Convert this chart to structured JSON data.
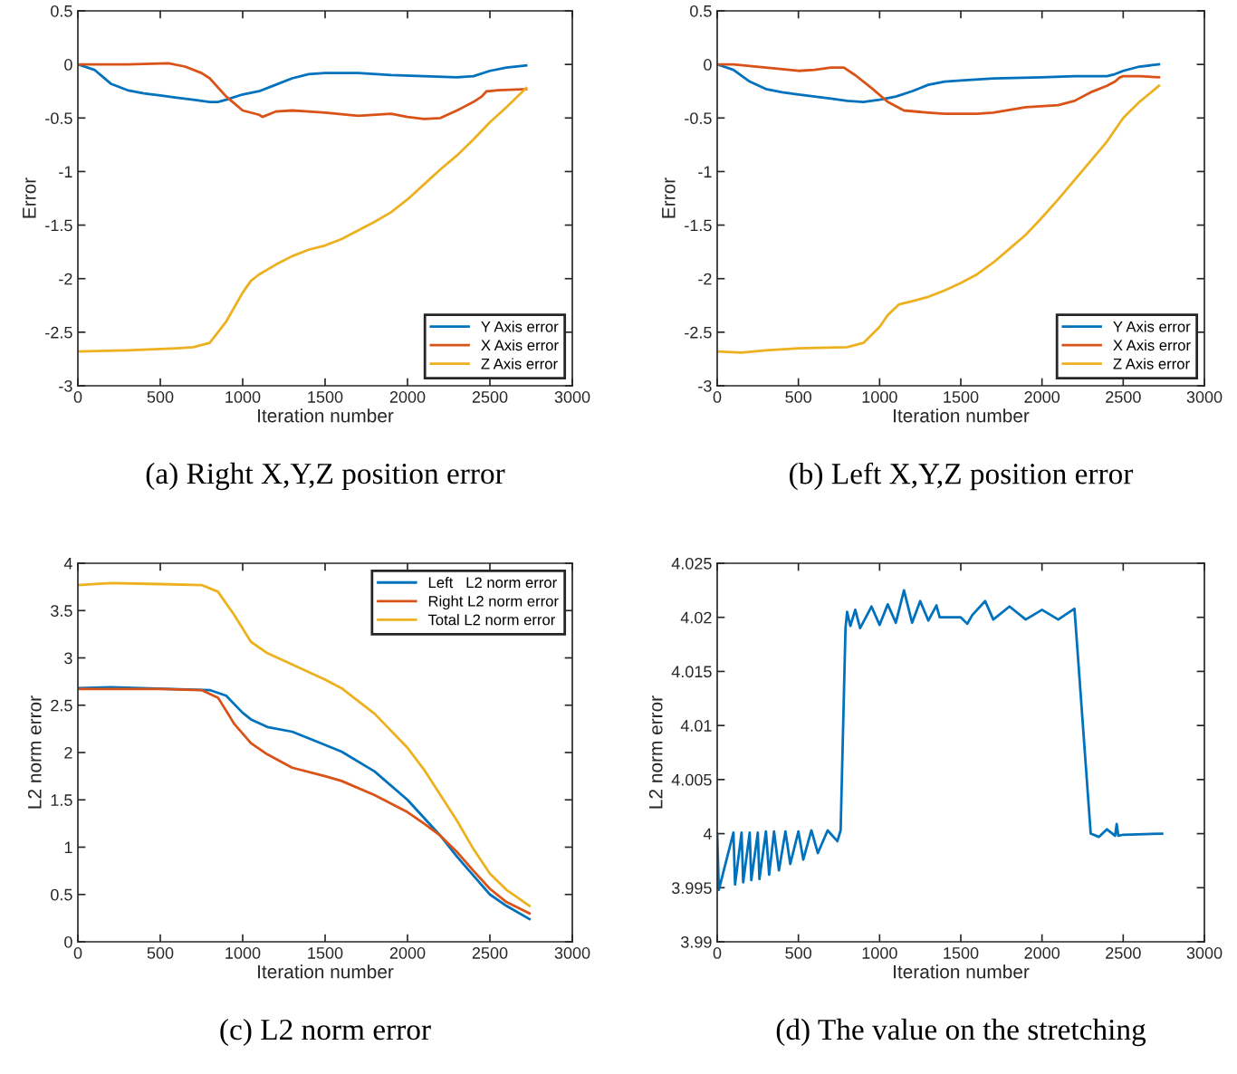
{
  "chart_data": [
    {
      "type": "line",
      "xlabel": "Iteration number",
      "ylabel": "Error",
      "annotations": [
        "(a) Right X,Y,Z position error"
      ],
      "xlim": [
        0,
        3000
      ],
      "ylim": [
        -3,
        0.5
      ],
      "xticks": [
        0,
        500,
        1000,
        1500,
        2000,
        2500,
        3000
      ],
      "yticks": [
        -3,
        -2.5,
        -2,
        -1.5,
        -1,
        -0.5,
        0,
        0.5
      ],
      "legend": "bottom right",
      "series": [
        {
          "name": "Y Axis error",
          "color": "#0072bd",
          "x": [
            0,
            100,
            200,
            300,
            400,
            500,
            600,
            700,
            800,
            850,
            900,
            1000,
            1100,
            1200,
            1300,
            1400,
            1500,
            1700,
            1900,
            2100,
            2300,
            2400,
            2500,
            2600,
            2720
          ],
          "values": [
            0,
            -0.05,
            -0.18,
            -0.24,
            -0.27,
            -0.29,
            -0.31,
            -0.33,
            -0.35,
            -0.35,
            -0.33,
            -0.28,
            -0.25,
            -0.19,
            -0.13,
            -0.09,
            -0.08,
            -0.08,
            -0.1,
            -0.11,
            -0.12,
            -0.11,
            -0.06,
            -0.03,
            -0.01
          ]
        },
        {
          "name": "X Axis error",
          "color": "#d95319",
          "x": [
            0,
            300,
            550,
            650,
            750,
            800,
            900,
            1000,
            1100,
            1120,
            1200,
            1300,
            1400,
            1500,
            1700,
            1900,
            2000,
            2100,
            2200,
            2300,
            2400,
            2450,
            2480,
            2500,
            2550,
            2720
          ],
          "values": [
            0,
            0,
            0.01,
            -0.02,
            -0.08,
            -0.13,
            -0.3,
            -0.43,
            -0.47,
            -0.49,
            -0.44,
            -0.43,
            -0.44,
            -0.45,
            -0.48,
            -0.46,
            -0.49,
            -0.51,
            -0.5,
            -0.43,
            -0.35,
            -0.3,
            -0.25,
            -0.25,
            -0.24,
            -0.23
          ]
        },
        {
          "name": "Z Axis error",
          "color": "#edb120",
          "x": [
            0,
            300,
            600,
            700,
            800,
            900,
            1000,
            1050,
            1100,
            1200,
            1300,
            1400,
            1500,
            1600,
            1700,
            1800,
            1900,
            2000,
            2100,
            2200,
            2300,
            2400,
            2500,
            2600,
            2720
          ],
          "values": [
            -2.68,
            -2.67,
            -2.65,
            -2.64,
            -2.6,
            -2.4,
            -2.13,
            -2.02,
            -1.96,
            -1.87,
            -1.79,
            -1.73,
            -1.69,
            -1.63,
            -1.55,
            -1.47,
            -1.38,
            -1.26,
            -1.12,
            -0.98,
            -0.85,
            -0.7,
            -0.54,
            -0.4,
            -0.22
          ]
        }
      ]
    },
    {
      "type": "line",
      "xlabel": "Iteration number",
      "ylabel": "Error",
      "annotations": [
        "(b) Left X,Y,Z position error"
      ],
      "xlim": [
        0,
        3000
      ],
      "ylim": [
        -3,
        0.5
      ],
      "xticks": [
        0,
        500,
        1000,
        1500,
        2000,
        2500,
        3000
      ],
      "yticks": [
        -3,
        -2.5,
        -2,
        -1.5,
        -1,
        -0.5,
        0,
        0.5
      ],
      "legend": "bottom right",
      "series": [
        {
          "name": "Y Axis error",
          "color": "#0072bd",
          "x": [
            0,
            100,
            200,
            300,
            400,
            500,
            600,
            700,
            800,
            900,
            1000,
            1100,
            1200,
            1300,
            1400,
            1500,
            1700,
            2000,
            2200,
            2400,
            2450,
            2500,
            2600,
            2720
          ],
          "values": [
            0,
            -0.05,
            -0.16,
            -0.23,
            -0.26,
            -0.28,
            -0.3,
            -0.32,
            -0.34,
            -0.35,
            -0.33,
            -0.3,
            -0.25,
            -0.19,
            -0.16,
            -0.15,
            -0.13,
            -0.12,
            -0.11,
            -0.11,
            -0.09,
            -0.06,
            -0.02,
            0.0
          ]
        },
        {
          "name": "X Axis error",
          "color": "#d95319",
          "x": [
            0,
            100,
            300,
            500,
            600,
            700,
            780,
            850,
            950,
            1050,
            1150,
            1300,
            1400,
            1600,
            1700,
            1900,
            2100,
            2200,
            2300,
            2400,
            2450,
            2480,
            2500,
            2600,
            2720
          ],
          "values": [
            0,
            0,
            -0.03,
            -0.06,
            -0.05,
            -0.03,
            -0.03,
            -0.1,
            -0.22,
            -0.35,
            -0.43,
            -0.45,
            -0.46,
            -0.46,
            -0.45,
            -0.4,
            -0.38,
            -0.34,
            -0.26,
            -0.2,
            -0.16,
            -0.12,
            -0.11,
            -0.11,
            -0.12
          ]
        },
        {
          "name": "Z Axis error",
          "color": "#edb120",
          "x": [
            0,
            150,
            300,
            500,
            800,
            900,
            1000,
            1050,
            1120,
            1200,
            1300,
            1400,
            1500,
            1600,
            1700,
            1800,
            1900,
            2000,
            2100,
            2200,
            2300,
            2400,
            2500,
            2600,
            2720
          ],
          "values": [
            -2.68,
            -2.69,
            -2.67,
            -2.65,
            -2.64,
            -2.6,
            -2.45,
            -2.34,
            -2.24,
            -2.21,
            -2.17,
            -2.11,
            -2.04,
            -1.96,
            -1.85,
            -1.72,
            -1.59,
            -1.43,
            -1.26,
            -1.08,
            -0.9,
            -0.72,
            -0.5,
            -0.35,
            -0.2
          ]
        }
      ]
    },
    {
      "type": "line",
      "xlabel": "Iteration number",
      "ylabel": "L2 norm error",
      "annotations": [
        "(c) L2 norm error"
      ],
      "xlim": [
        0,
        3000
      ],
      "ylim": [
        0,
        4
      ],
      "xticks": [
        0,
        500,
        1000,
        1500,
        2000,
        2500,
        3000
      ],
      "yticks": [
        0,
        0.5,
        1,
        1.5,
        2,
        2.5,
        3,
        3.5,
        4
      ],
      "legend": "top right",
      "series": [
        {
          "name": "Left   L2 norm error",
          "color": "#0072bd",
          "x": [
            0,
            200,
            800,
            900,
            1000,
            1050,
            1150,
            1300,
            1400,
            1600,
            1800,
            2000,
            2200,
            2300,
            2400,
            2500,
            2600,
            2740
          ],
          "values": [
            2.68,
            2.69,
            2.66,
            2.6,
            2.42,
            2.35,
            2.27,
            2.22,
            2.15,
            2.01,
            1.8,
            1.5,
            1.12,
            0.9,
            0.7,
            0.5,
            0.38,
            0.24
          ]
        },
        {
          "name": "Right L2 norm error",
          "color": "#d95319",
          "x": [
            0,
            500,
            750,
            850,
            950,
            1050,
            1150,
            1300,
            1500,
            1600,
            1800,
            2000,
            2100,
            2200,
            2300,
            2400,
            2500,
            2600,
            2740
          ],
          "values": [
            2.67,
            2.67,
            2.66,
            2.58,
            2.3,
            2.1,
            1.98,
            1.84,
            1.75,
            1.7,
            1.55,
            1.37,
            1.25,
            1.12,
            0.95,
            0.75,
            0.56,
            0.42,
            0.3
          ]
        },
        {
          "name": "Total L2 norm error",
          "color": "#edb120",
          "x": [
            0,
            200,
            500,
            750,
            850,
            950,
            1050,
            1150,
            1300,
            1500,
            1600,
            1800,
            2000,
            2100,
            2200,
            2300,
            2400,
            2500,
            2600,
            2740
          ],
          "values": [
            3.77,
            3.79,
            3.78,
            3.77,
            3.7,
            3.45,
            3.17,
            3.05,
            2.93,
            2.77,
            2.68,
            2.41,
            2.05,
            1.82,
            1.55,
            1.28,
            0.98,
            0.72,
            0.55,
            0.38
          ]
        }
      ]
    },
    {
      "type": "line",
      "xlabel": "Iteration number",
      "ylabel": "L2 norm error",
      "annotations": [
        "(d) The value on the stretching"
      ],
      "xlim": [
        0,
        3000
      ],
      "ylim": [
        3.99,
        4.025
      ],
      "xticks": [
        0,
        500,
        1000,
        1500,
        2000,
        2500,
        3000
      ],
      "yticks": [
        3.99,
        3.995,
        4,
        4.005,
        4.01,
        4.015,
        4.02,
        4.025
      ],
      "series": [
        {
          "color": "#0072bd",
          "x": [
            0,
            10,
            100,
            110,
            150,
            160,
            200,
            210,
            250,
            260,
            300,
            320,
            350,
            380,
            420,
            450,
            500,
            530,
            580,
            620,
            680,
            740,
            760,
            790,
            800,
            820,
            850,
            880,
            950,
            1000,
            1050,
            1100,
            1150,
            1200,
            1250,
            1300,
            1350,
            1370,
            1500,
            1540,
            1570,
            1650,
            1700,
            1800,
            1900,
            2000,
            2100,
            2200,
            2300,
            2350,
            2400,
            2450,
            2460,
            2470,
            2500,
            2740
          ],
          "values": [
            4.0,
            3.9948,
            4.0001,
            3.9953,
            4.0001,
            3.9955,
            4.0001,
            3.9957,
            4.0001,
            3.9958,
            4.0002,
            3.9962,
            4.0002,
            3.9966,
            4.0002,
            3.9972,
            4.0002,
            3.9976,
            4.0003,
            3.9982,
            4.0003,
            3.9993,
            4.0003,
            4.019,
            4.0205,
            4.0192,
            4.0207,
            4.019,
            4.021,
            4.0193,
            4.0212,
            4.0195,
            4.0225,
            4.0195,
            4.0215,
            4.0197,
            4.0211,
            4.02,
            4.02,
            4.0194,
            4.0202,
            4.0215,
            4.0198,
            4.021,
            4.0198,
            4.0207,
            4.0198,
            4.0208,
            4.0,
            3.9997,
            4.0004,
            3.9998,
            4.0009,
            3.9998,
            3.9999,
            4.0
          ]
        }
      ]
    }
  ]
}
